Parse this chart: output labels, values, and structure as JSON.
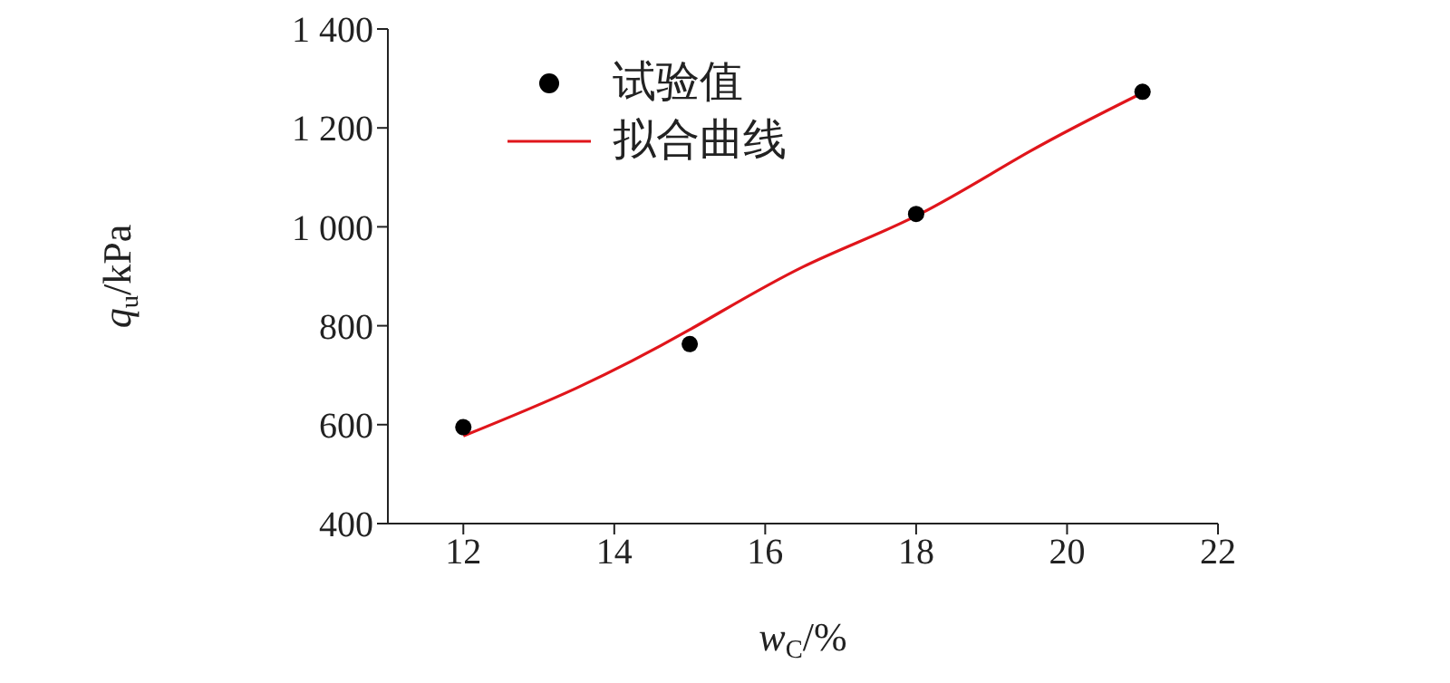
{
  "chart_data": {
    "type": "scatter",
    "xlabel": "w$_{C}$/%",
    "ylabel": "q$_{u}$/kPa",
    "xlim": [
      11,
      22
    ],
    "xticks": [
      12,
      14,
      16,
      18,
      20,
      22
    ],
    "ylim": [
      400,
      1400
    ],
    "yticks": [
      400,
      600,
      800,
      {
        "value": 1000,
        "label": "1 000"
      },
      {
        "value": 1200,
        "label": "1 200"
      },
      {
        "value": 1400,
        "label": "1 400"
      }
    ],
    "grid": false,
    "legend": "top left",
    "series": [
      {
        "name": "试验值",
        "marker": "circle",
        "color": "#000000",
        "x": [
          12,
          15,
          18,
          21
        ],
        "values": [
          595,
          763,
          1026,
          1273
        ]
      },
      {
        "name": "拟合曲线",
        "type": "line",
        "marker": "none",
        "line_style": "solid",
        "color": "#e0151b",
        "x": [
          12,
          13.5,
          15,
          16.5,
          18,
          19.5,
          21
        ],
        "values": [
          577,
          674,
          792,
          919,
          1022,
          1152,
          1271
        ]
      }
    ]
  }
}
